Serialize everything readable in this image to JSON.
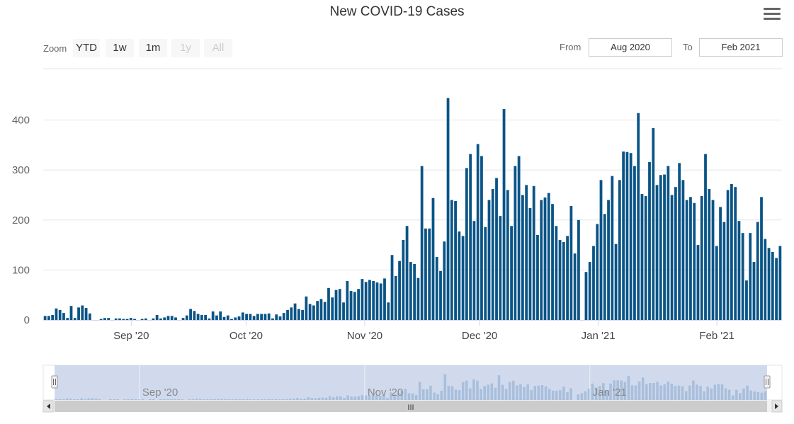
{
  "header": {
    "title": "New COVID-19 Cases"
  },
  "menu": {
    "icon": "hamburger-menu-icon"
  },
  "range_selector": {
    "zoom_label": "Zoom",
    "buttons": [
      {
        "label": "YTD",
        "enabled": true
      },
      {
        "label": "1w",
        "enabled": true
      },
      {
        "label": "1m",
        "enabled": true
      },
      {
        "label": "1y",
        "enabled": false
      },
      {
        "label": "All",
        "enabled": false
      }
    ],
    "from_label": "From",
    "from_value": "Aug 2020",
    "to_label": "To",
    "to_value": "Feb 2021"
  },
  "navigator": {
    "x_tick_labels": [
      "Sep '20",
      "Nov '20",
      "Jan '21"
    ],
    "scrollbar_grip": "III"
  },
  "colors": {
    "bar": "#0a5486",
    "navigator_fill": "#ccd6eb",
    "grid": "#e6e6e6"
  },
  "chart_data": {
    "type": "bar",
    "title": "New COVID-19 Cases",
    "x_start": "2020-08-09",
    "x_end": "2021-02-18",
    "y_tick_labels": [
      "0",
      "100",
      "200",
      "300",
      "400"
    ],
    "ylim": [
      0,
      460
    ],
    "x_tick_labels": [
      "Sep '20",
      "Oct '20",
      "Nov '20",
      "Dec '20",
      "Jan '21",
      "Feb '21"
    ],
    "x_tick_dates": [
      "2020-09-01",
      "2020-10-01",
      "2020-11-01",
      "2020-12-01",
      "2021-01-01",
      "2021-02-01"
    ],
    "grid": true,
    "legend": "none",
    "values": [
      8,
      8,
      10,
      23,
      20,
      14,
      4,
      28,
      4,
      25,
      29,
      24,
      13,
      0,
      0,
      2,
      4,
      4,
      0,
      3,
      3,
      2,
      2,
      4,
      2,
      0,
      2,
      3,
      0,
      3,
      10,
      3,
      5,
      8,
      8,
      5,
      0,
      4,
      9,
      22,
      18,
      12,
      10,
      10,
      3,
      17,
      9,
      17,
      6,
      9,
      2,
      5,
      7,
      15,
      12,
      12,
      8,
      12,
      12,
      12,
      13,
      3,
      11,
      7,
      14,
      20,
      25,
      33,
      22,
      20,
      47,
      32,
      29,
      38,
      42,
      36,
      64,
      45,
      60,
      62,
      35,
      78,
      58,
      56,
      62,
      82,
      76,
      80,
      78,
      75,
      73,
      83,
      35,
      130,
      88,
      118,
      160,
      188,
      116,
      112,
      84,
      308,
      183,
      183,
      244,
      126,
      98,
      157,
      444,
      240,
      238,
      177,
      168,
      304,
      332,
      198,
      352,
      328,
      186,
      240,
      262,
      284,
      208,
      422,
      260,
      188,
      308,
      328,
      250,
      270,
      224,
      268,
      170,
      240,
      245,
      254,
      232,
      188,
      160,
      156,
      168,
      228,
      133,
      200,
      0,
      96,
      116,
      148,
      192,
      280,
      212,
      240,
      288,
      152,
      280,
      337,
      336,
      334,
      308,
      414,
      252,
      248,
      316,
      384,
      270,
      290,
      291,
      308,
      250,
      266,
      314,
      280,
      240,
      246,
      234,
      150,
      248,
      332,
      262,
      240,
      148,
      226,
      196,
      260,
      272,
      266,
      198,
      174,
      79,
      174,
      116,
      196,
      246,
      162,
      144,
      136,
      124,
      148
    ]
  }
}
